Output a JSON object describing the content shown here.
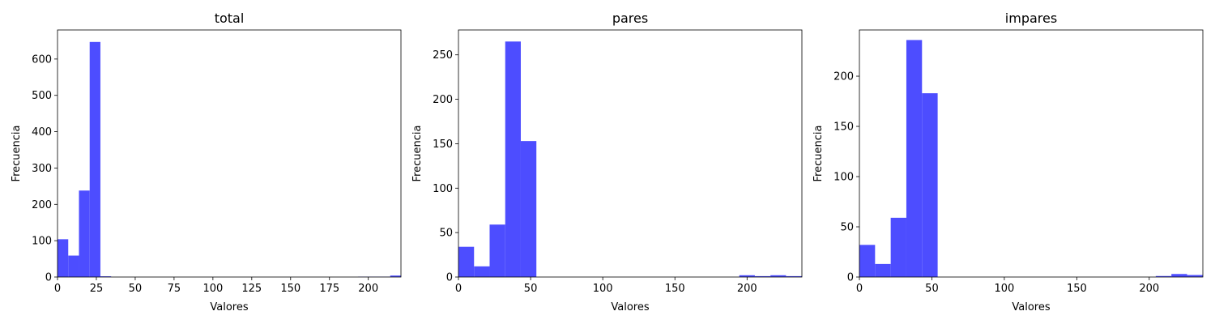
{
  "chart_data": [
    {
      "type": "bar",
      "title": "total",
      "xlabel": "Valores",
      "ylabel": "Frecuencia",
      "xlim": [
        0,
        221
      ],
      "ylim": [
        0,
        680
      ],
      "xticks": [
        0,
        25,
        50,
        75,
        100,
        125,
        150,
        175,
        200
      ],
      "yticks": [
        0,
        100,
        200,
        300,
        400,
        500,
        600
      ],
      "bar_color": "#4d4dff",
      "grid": false,
      "bins": [
        {
          "x0": 0,
          "x1": 6.9,
          "value": 104
        },
        {
          "x0": 6.9,
          "x1": 13.8,
          "value": 59
        },
        {
          "x0": 13.8,
          "x1": 20.7,
          "value": 238
        },
        {
          "x0": 20.7,
          "x1": 27.6,
          "value": 647
        },
        {
          "x0": 27.6,
          "x1": 34.5,
          "value": 2
        },
        {
          "x0": 193.4,
          "x1": 200.3,
          "value": 1
        },
        {
          "x0": 200.3,
          "x1": 207.2,
          "value": 1
        },
        {
          "x0": 207.2,
          "x1": 214.1,
          "value": 1
        },
        {
          "x0": 214.1,
          "x1": 221,
          "value": 4
        }
      ]
    },
    {
      "type": "bar",
      "title": "pares",
      "xlabel": "Valores",
      "ylabel": "Frecuencia",
      "xlim": [
        0,
        238
      ],
      "ylim": [
        0,
        278
      ],
      "xticks": [
        0,
        50,
        100,
        150,
        200
      ],
      "yticks": [
        0,
        50,
        100,
        150,
        200,
        250
      ],
      "bar_color": "#4d4dff",
      "grid": false,
      "bins": [
        {
          "x0": 0,
          "x1": 10.8,
          "value": 34
        },
        {
          "x0": 10.8,
          "x1": 21.6,
          "value": 12
        },
        {
          "x0": 21.6,
          "x1": 32.4,
          "value": 59
        },
        {
          "x0": 32.4,
          "x1": 43.2,
          "value": 265
        },
        {
          "x0": 43.2,
          "x1": 54,
          "value": 153
        },
        {
          "x0": 194.6,
          "x1": 205.4,
          "value": 2
        },
        {
          "x0": 205.4,
          "x1": 216.2,
          "value": 1
        },
        {
          "x0": 216.2,
          "x1": 227,
          "value": 2
        },
        {
          "x0": 227,
          "x1": 238,
          "value": 1
        }
      ]
    },
    {
      "type": "bar",
      "title": "impares",
      "xlabel": "Valores",
      "ylabel": "Frecuencia",
      "xlim": [
        0,
        237
      ],
      "ylim": [
        0,
        246
      ],
      "xticks": [
        0,
        50,
        100,
        150,
        200
      ],
      "yticks": [
        0,
        50,
        100,
        150,
        200
      ],
      "bar_color": "#4d4dff",
      "grid": false,
      "bins": [
        {
          "x0": 0,
          "x1": 10.8,
          "value": 32
        },
        {
          "x0": 10.8,
          "x1": 21.6,
          "value": 13
        },
        {
          "x0": 21.6,
          "x1": 32.4,
          "value": 59
        },
        {
          "x0": 32.4,
          "x1": 43.2,
          "value": 236
        },
        {
          "x0": 43.2,
          "x1": 54,
          "value": 183
        },
        {
          "x0": 204.5,
          "x1": 215.3,
          "value": 1
        },
        {
          "x0": 215.3,
          "x1": 226.1,
          "value": 3
        },
        {
          "x0": 226.1,
          "x1": 237,
          "value": 2
        }
      ]
    }
  ]
}
